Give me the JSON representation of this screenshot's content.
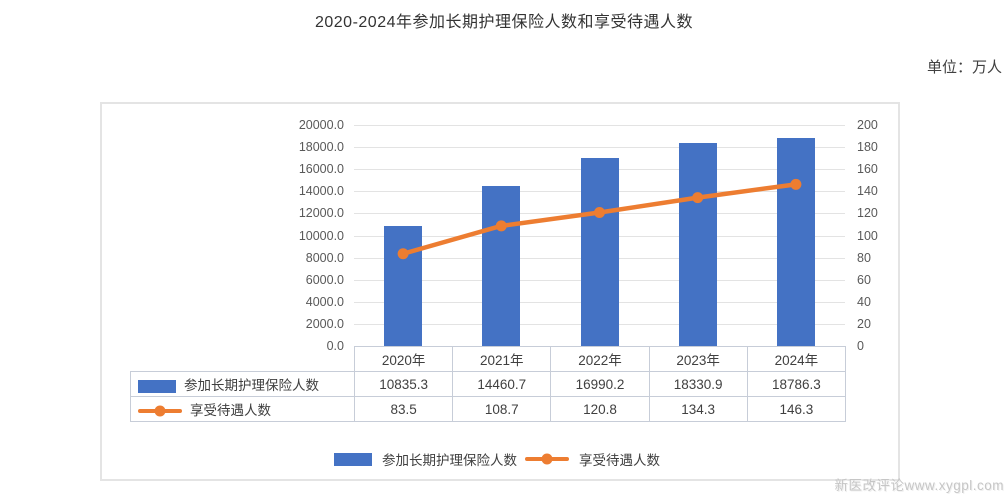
{
  "title": "2020-2024年参加长期护理保险人数和享受待遇人数",
  "unit_label": "单位：万人",
  "watermark": {
    "brand": "新医改评论",
    "url": "www.xygpl.com"
  },
  "colors": {
    "bar": "#4472C4",
    "line": "#ED7D31",
    "grid": "#e3e3e3",
    "axis_text": "#595959",
    "table_border": "#c7cdd8",
    "text": "#404040"
  },
  "chart_data": {
    "type": "bar",
    "subtype": "bar+line combo with data table",
    "title": "2020-2024年参加长期护理保险人数和享受待遇人数",
    "categories": [
      "2020年",
      "2021年",
      "2022年",
      "2023年",
      "2024年"
    ],
    "series": [
      {
        "name": "参加长期护理保险人数",
        "type": "bar",
        "axis": "left",
        "values": [
          10835.3,
          14460.7,
          16990.2,
          18330.9,
          18786.3
        ],
        "color": "#4472C4"
      },
      {
        "name": "享受待遇人数",
        "type": "line",
        "axis": "right",
        "values": [
          83.5,
          108.7,
          120.8,
          134.3,
          146.3
        ],
        "color": "#ED7D31"
      }
    ],
    "left_axis": {
      "min": 0,
      "max": 20000,
      "step": 2000,
      "decimals": 1
    },
    "right_axis": {
      "min": 0,
      "max": 200,
      "step": 20,
      "decimals": 0
    },
    "grid": true,
    "legend_position": "bottom",
    "xlabel": "",
    "ylabel": ""
  }
}
